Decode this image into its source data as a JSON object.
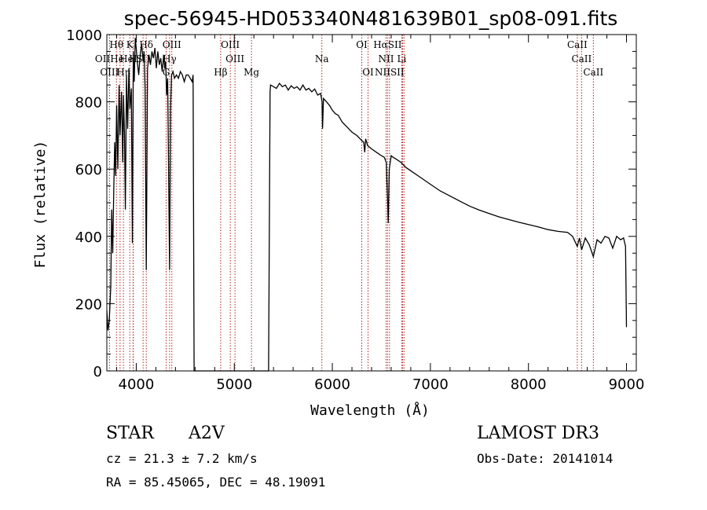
{
  "chart_data": {
    "type": "line",
    "title": "spec-56945-HD053340N481639B01_sp08-091.fits",
    "xlabel": "Wavelength (Å)",
    "ylabel": "Flux (relative)",
    "xlim": [
      3700,
      9100
    ],
    "ylim": [
      0,
      1000
    ],
    "xticks": [
      4000,
      5000,
      6000,
      7000,
      8000,
      9000
    ],
    "yticks": [
      0,
      200,
      400,
      600,
      800,
      1000
    ],
    "xtick_labels": [
      "4000",
      "5000",
      "6000",
      "7000",
      "8000",
      "9000"
    ],
    "ytick_labels": [
      "0",
      "200",
      "400",
      "600",
      "800",
      "1000"
    ],
    "grid": false,
    "series": [
      {
        "name": "flux",
        "x": [
          3700,
          3712,
          3725,
          3740,
          3750,
          3760,
          3770,
          3780,
          3790,
          3800,
          3812,
          3825,
          3835,
          3850,
          3862,
          3870,
          3880,
          3889,
          3900,
          3912,
          3925,
          3935,
          3950,
          3960,
          3970,
          3980,
          3990,
          4000,
          4010,
          4025,
          4040,
          4055,
          4070,
          4080,
          4090,
          4102,
          4115,
          4130,
          4145,
          4160,
          4175,
          4190,
          4205,
          4220,
          4235,
          4250,
          4265,
          4280,
          4290,
          4300,
          4310,
          4320,
          4330,
          4340,
          4350,
          4360,
          4375,
          4390,
          4410,
          4430,
          4450,
          4470,
          4490,
          4510,
          4530,
          4550,
          4570,
          4580,
          4590,
          4600,
          5350,
          5365,
          5370,
          5400,
          5430,
          5460,
          5490,
          5520,
          5550,
          5580,
          5610,
          5640,
          5670,
          5700,
          5730,
          5760,
          5790,
          5820,
          5850,
          5880,
          5895,
          5900,
          5910,
          5940,
          5970,
          6000,
          6030,
          6060,
          6100,
          6150,
          6200,
          6250,
          6300,
          6320,
          6330,
          6340,
          6360,
          6400,
          6450,
          6500,
          6530,
          6550,
          6562,
          6570,
          6580,
          6600,
          6620,
          6650,
          6700,
          6750,
          6800,
          6900,
          7000,
          7100,
          7200,
          7300,
          7400,
          7500,
          7600,
          7700,
          7800,
          7900,
          8000,
          8100,
          8200,
          8300,
          8400,
          8450,
          8498,
          8520,
          8542,
          8580,
          8620,
          8662,
          8700,
          8740,
          8780,
          8820,
          8860,
          8900,
          8940,
          8970,
          8990,
          9000
        ],
        "y": [
          180,
          120,
          150,
          250,
          480,
          350,
          520,
          680,
          580,
          790,
          600,
          850,
          700,
          830,
          620,
          820,
          700,
          480,
          880,
          720,
          900,
          780,
          840,
          380,
          950,
          860,
          990,
          960,
          920,
          880,
          940,
          970,
          920,
          950,
          840,
          300,
          900,
          940,
          910,
          950,
          930,
          960,
          900,
          950,
          910,
          930,
          890,
          940,
          900,
          920,
          820,
          870,
          600,
          300,
          780,
          880,
          890,
          870,
          880,
          870,
          890,
          880,
          860,
          880,
          880,
          870,
          860,
          880,
          0,
          0,
          0,
          830,
          850,
          845,
          840,
          855,
          845,
          850,
          835,
          848,
          840,
          845,
          835,
          850,
          835,
          840,
          830,
          838,
          820,
          825,
          800,
          720,
          810,
          800,
          790,
          775,
          765,
          760,
          740,
          725,
          710,
          700,
          685,
          680,
          650,
          690,
          670,
          660,
          650,
          640,
          635,
          620,
          520,
          440,
          600,
          640,
          635,
          630,
          620,
          605,
          595,
          575,
          555,
          535,
          520,
          505,
          490,
          478,
          468,
          458,
          450,
          442,
          435,
          428,
          420,
          415,
          412,
          400,
          370,
          395,
          360,
          395,
          375,
          340,
          390,
          380,
          400,
          395,
          365,
          400,
          390,
          395,
          370,
          130
        ]
      }
    ],
    "spectral_lines": [
      {
        "label": "OII",
        "wavelength": 3727
      },
      {
        "label": "Hθ",
        "wavelength": 3798
      },
      {
        "label": "OIII",
        "wavelength": 3835
      },
      {
        "label": "Hη",
        "wavelength": 3869
      },
      {
        "label": "K",
        "wavelength": 3934
      },
      {
        "label": "He",
        "wavelength": 3970
      },
      {
        "label": "H",
        "wavelength": 3968
      },
      {
        "label": "Hδ",
        "wavelength": 4102
      },
      {
        "label": "SII",
        "wavelength": 4070
      },
      {
        "label": "OIII",
        "wavelength": 4363
      },
      {
        "label": "Hγ",
        "wavelength": 4340
      },
      {
        "label": "G",
        "wavelength": 4305
      },
      {
        "label": "Hβ",
        "wavelength": 4861
      },
      {
        "label": "OIII",
        "wavelength": 4959
      },
      {
        "label": "OIII",
        "wavelength": 5007
      },
      {
        "label": "Mg",
        "wavelength": 5175
      },
      {
        "label": "Na",
        "wavelength": 5893
      },
      {
        "label": "OI",
        "wavelength": 6300
      },
      {
        "label": "OI",
        "wavelength": 6364
      },
      {
        "label": "NII",
        "wavelength": 6548
      },
      {
        "label": "Hα",
        "wavelength": 6563
      },
      {
        "label": "NII",
        "wavelength": 6583
      },
      {
        "label": "SII",
        "wavelength": 6717
      },
      {
        "label": "Li",
        "wavelength": 6708
      },
      {
        "label": "SII",
        "wavelength": 6731
      },
      {
        "label": "CaII",
        "wavelength": 8498
      },
      {
        "label": "CaII",
        "wavelength": 8542
      },
      {
        "label": "CaII",
        "wavelength": 8662
      }
    ],
    "line_labels": [
      {
        "text": "Hθ",
        "wavelength": 3798,
        "row": 1
      },
      {
        "text": "K",
        "wavelength": 3934,
        "row": 1
      },
      {
        "text": "Hδ",
        "wavelength": 4102,
        "row": 1
      },
      {
        "text": "OIII",
        "wavelength": 4363,
        "row": 1
      },
      {
        "text": "OIII",
        "wavelength": 4959,
        "row": 1
      },
      {
        "text": "OI",
        "wavelength": 6300,
        "row": 1
      },
      {
        "text": "HαSII",
        "wavelength": 6563,
        "row": 1
      },
      {
        "text": "CaII",
        "wavelength": 8498,
        "row": 1
      },
      {
        "text": "OIIHe",
        "wavelength": 3727,
        "row": 2
      },
      {
        "text": "He",
        "wavelength": 3900,
        "row": 2
      },
      {
        "text": "H",
        "wavelength": 3968,
        "row": 2
      },
      {
        "text": "SII",
        "wavelength": 4070,
        "row": 2
      },
      {
        "text": "Hγ",
        "wavelength": 4340,
        "row": 2
      },
      {
        "text": "OIII",
        "wavelength": 5007,
        "row": 2
      },
      {
        "text": "Na",
        "wavelength": 5893,
        "row": 2
      },
      {
        "text": "NII",
        "wavelength": 6548,
        "row": 2
      },
      {
        "text": "Li",
        "wavelength": 6708,
        "row": 2
      },
      {
        "text": "CaII",
        "wavelength": 8542,
        "row": 2
      },
      {
        "text": "OIII",
        "wavelength": 3727,
        "row": 3
      },
      {
        "text": "Hη",
        "wavelength": 3869,
        "row": 3
      },
      {
        "text": "G",
        "wavelength": 4305,
        "row": 3
      },
      {
        "text": "Hβ",
        "wavelength": 4861,
        "row": 3
      },
      {
        "text": "Mg",
        "wavelength": 5175,
        "row": 3
      },
      {
        "text": "OI",
        "wavelength": 6364,
        "row": 3
      },
      {
        "text": "NIISII",
        "wavelength": 6583,
        "row": 3
      },
      {
        "text": "CaII",
        "wavelength": 8662,
        "row": 3
      }
    ]
  },
  "info": {
    "object_class": "STAR",
    "subclass": "A2V",
    "survey": "LAMOST DR3",
    "cz": "cz = 21.3 ± 7.2 km/s",
    "obs_date": "Obs-Date: 20141014",
    "coords": "RA =  85.45065, DEC =  48.19091"
  },
  "colors": {
    "spectrum": "#000000",
    "line_marker": "#b22222",
    "axes": "#000000"
  }
}
